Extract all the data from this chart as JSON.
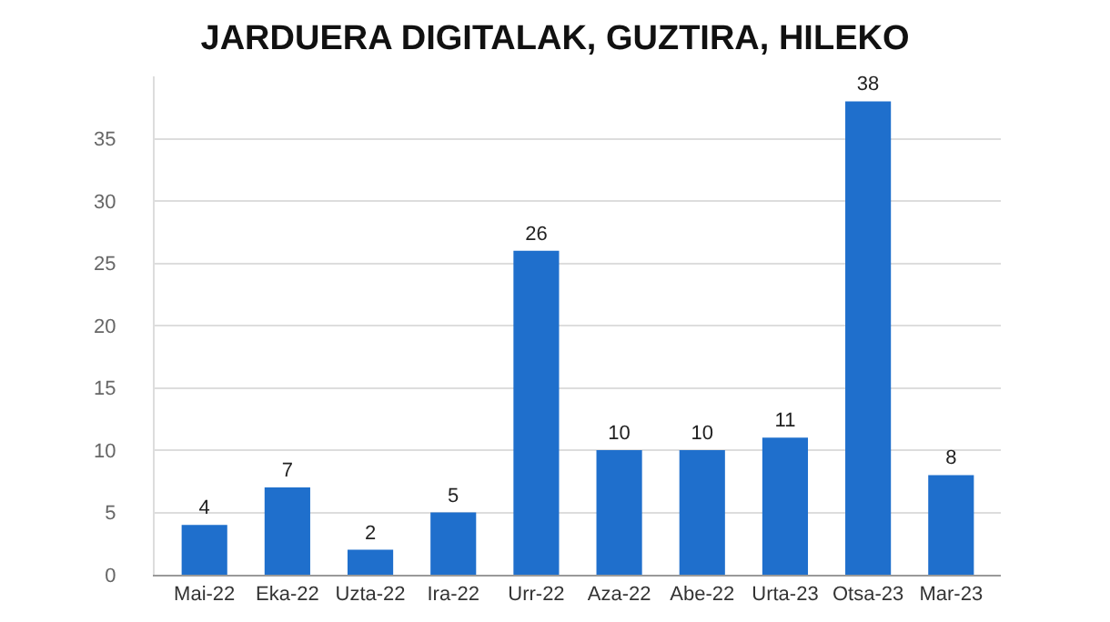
{
  "chart_data": {
    "type": "bar",
    "title": "JARDUERA DIGITALAK, GUZTIRA, HILEKO",
    "categories": [
      "Mai-22",
      "Eka-22",
      "Uzta-22",
      "Ira-22",
      "Urr-22",
      "Aza-22",
      "Abe-22",
      "Urta-23",
      "Otsa-23",
      "Mar-23"
    ],
    "values": [
      4,
      7,
      2,
      5,
      26,
      10,
      10,
      11,
      38,
      8
    ],
    "color": "#1f6fcc",
    "ylim": [
      0,
      40
    ],
    "yticks": [
      0,
      5,
      10,
      15,
      20,
      25,
      30,
      35
    ],
    "grid": "y",
    "data_labels": true
  }
}
